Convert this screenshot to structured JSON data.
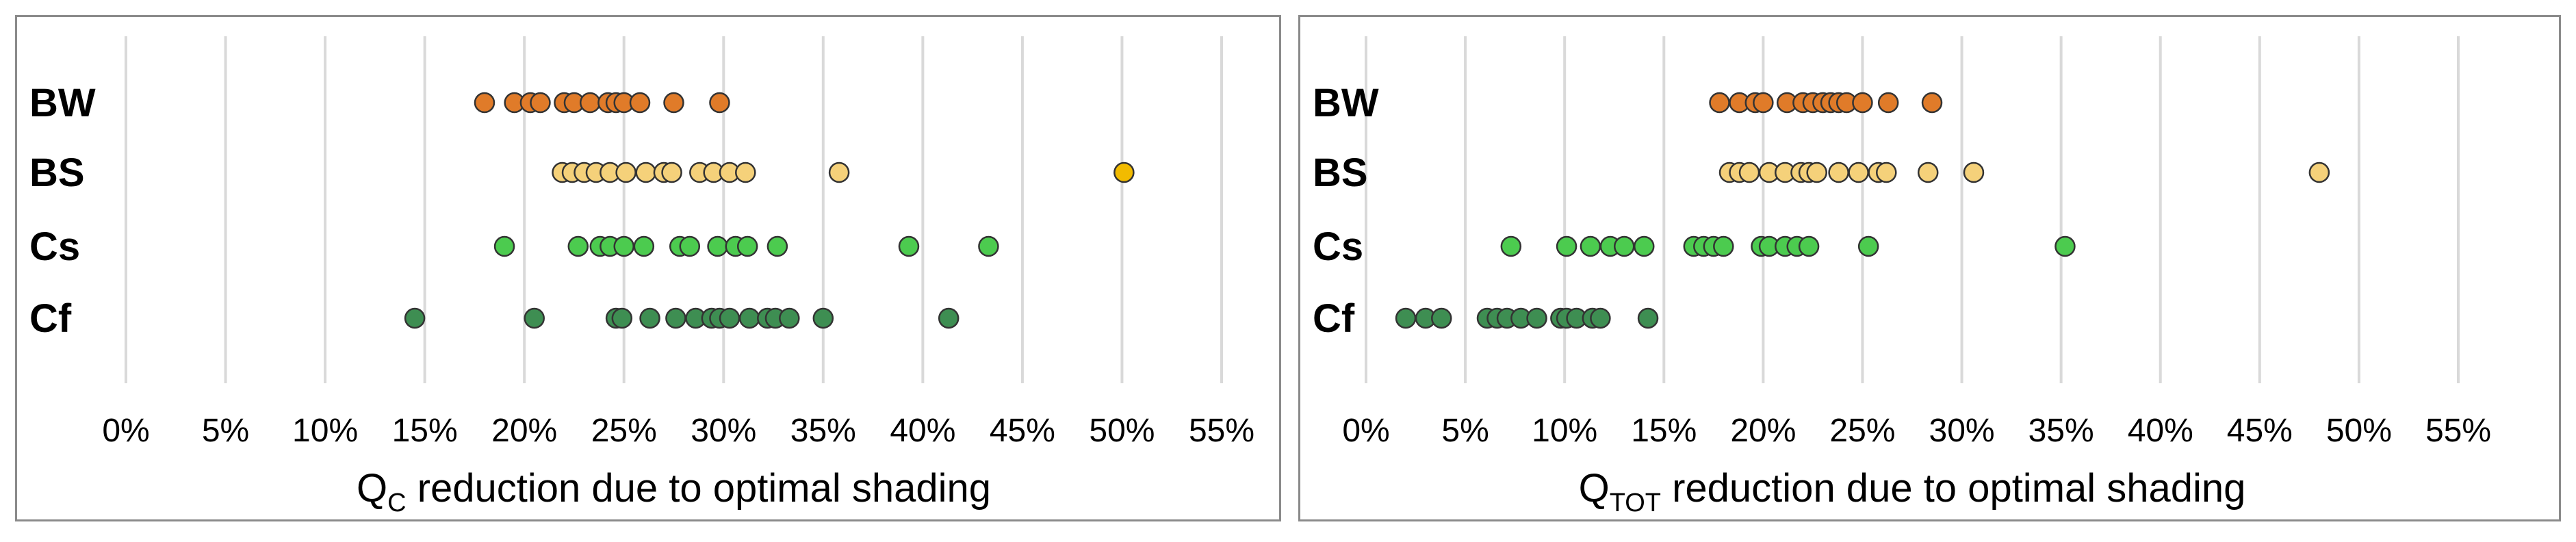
{
  "chart_data": [
    {
      "type": "scatter",
      "xlabel": "Q",
      "xlabel_sub": "C",
      "xlabel_rest": " reduction due to optimal shading",
      "xlim": [
        0,
        55
      ],
      "x_ticks": [
        "0%",
        "5%",
        "10%",
        "15%",
        "20%",
        "25%",
        "30%",
        "35%",
        "40%",
        "45%",
        "50%",
        "55%"
      ],
      "categories": [
        "BW",
        "BS",
        "Cs",
        "Cf"
      ],
      "grid": true,
      "series": [
        {
          "category": "BW",
          "color": "#E07B29",
          "values": [
            18.0,
            19.5,
            20.3,
            20.8,
            22.0,
            22.5,
            23.3,
            24.2,
            24.6,
            25.0,
            25.8,
            27.5,
            29.8
          ]
        },
        {
          "category": "BS",
          "color": "#F5D17A",
          "values": [
            21.9,
            22.4,
            23.0,
            23.6,
            24.3,
            25.1,
            26.1,
            27.0,
            27.4,
            28.8,
            29.5,
            30.3,
            31.1,
            35.8
          ],
          "highlight": {
            "values": [
              50.1
            ],
            "color": "#F2BB00"
          }
        },
        {
          "category": "Cs",
          "color": "#4CCB4F",
          "values": [
            19.0,
            22.7,
            23.8,
            24.3,
            25.0,
            26.0,
            27.8,
            28.3,
            29.7,
            30.6,
            31.2,
            32.7,
            39.3,
            43.3
          ]
        },
        {
          "category": "Cf",
          "color": "#3E8E52",
          "values": [
            14.5,
            20.5,
            24.6,
            24.9,
            26.3,
            27.6,
            28.6,
            29.4,
            29.8,
            30.3,
            31.3,
            32.2,
            32.6,
            33.3,
            35.0,
            41.3
          ]
        }
      ]
    },
    {
      "type": "scatter",
      "xlabel": "Q",
      "xlabel_sub": "TOT",
      "xlabel_rest": " reduction due to optimal shading",
      "xlim": [
        0,
        55
      ],
      "x_ticks": [
        "0%",
        "5%",
        "10%",
        "15%",
        "20%",
        "25%",
        "30%",
        "35%",
        "40%",
        "45%",
        "50%",
        "55%"
      ],
      "categories": [
        "BW",
        "BS",
        "Cs",
        "Cf"
      ],
      "grid": true,
      "series": [
        {
          "category": "BW",
          "color": "#E07B29",
          "values": [
            17.8,
            18.8,
            19.6,
            20.0,
            21.2,
            22.0,
            22.5,
            23.0,
            23.4,
            23.8,
            24.2,
            25.0,
            26.3,
            28.5
          ]
        },
        {
          "category": "BS",
          "color": "#F5D17A",
          "values": [
            18.3,
            18.8,
            19.3,
            20.3,
            21.1,
            21.9,
            22.3,
            22.7,
            23.8,
            24.8,
            25.8,
            26.2,
            28.3,
            30.6,
            48.0
          ]
        },
        {
          "category": "Cs",
          "color": "#4CCB4F",
          "values": [
            7.3,
            10.1,
            11.3,
            12.3,
            13.0,
            14.0,
            16.5,
            17.0,
            17.5,
            18.0,
            19.9,
            20.3,
            21.1,
            21.7,
            22.3,
            25.3,
            35.2
          ]
        },
        {
          "category": "Cf",
          "color": "#3E8E52",
          "values": [
            2.0,
            3.0,
            3.8,
            6.1,
            6.6,
            7.1,
            7.8,
            8.6,
            9.8,
            10.1,
            10.6,
            11.4,
            11.8,
            14.2
          ]
        }
      ]
    }
  ]
}
